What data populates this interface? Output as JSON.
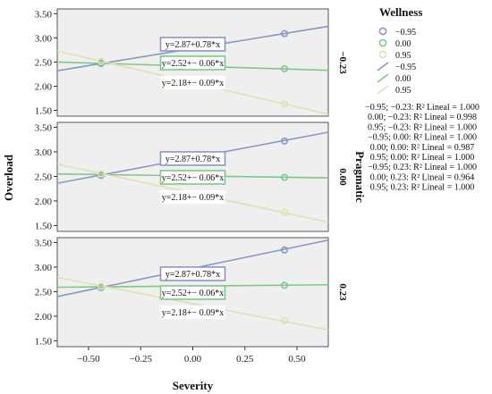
{
  "chart_data": {
    "type": "scatter",
    "xlabel": "Severity",
    "ylabel": "Overload",
    "facet_label": "Pragmatic",
    "legend_title": "Wellness",
    "xlim": [
      -0.65,
      0.65
    ],
    "ylim": [
      1.38,
      3.6
    ],
    "xticks": [
      "-0.50",
      "-0.25",
      "0.00",
      "0.25",
      "0.50"
    ],
    "yticks": [
      "1.50",
      "2.00",
      "2.50",
      "3.00",
      "3.50"
    ],
    "grid": false,
    "legend_position": "right",
    "fit_equations": [
      "y=2.87+0.78*x",
      "y=2.52+− 0.06*x",
      "y=2.18+− 0.09*x"
    ],
    "series": [
      {
        "name": "−0.95",
        "color": "#8a96c8",
        "fit": {
          "intercept": 2.87,
          "slope": 0.78
        }
      },
      {
        "name": "0.00",
        "color": "#7cc98a",
        "fit": {
          "intercept": 2.52,
          "slope": -0.06
        }
      },
      {
        "name": "0.95",
        "color": "#e3dfb0",
        "fit": {
          "intercept": 2.18,
          "slope": -0.09
        }
      }
    ],
    "panels": [
      {
        "label": "−0.23",
        "points": [
          {
            "series": 0,
            "x": -0.44,
            "y": 2.47
          },
          {
            "series": 0,
            "x": 0.44,
            "y": 3.09
          },
          {
            "series": 1,
            "x": -0.44,
            "y": 2.49
          },
          {
            "series": 1,
            "x": 0.44,
            "y": 2.36
          },
          {
            "series": 2,
            "x": -0.44,
            "y": 2.51
          },
          {
            "series": 2,
            "x": 0.44,
            "y": 1.63
          }
        ],
        "lines": [
          {
            "series": 0,
            "y_at_xmin": 2.32,
            "y_at_xmax": 3.24
          },
          {
            "series": 1,
            "y_at_xmin": 2.5,
            "y_at_xmax": 2.33
          },
          {
            "series": 2,
            "y_at_xmin": 2.73,
            "y_at_xmax": 1.42
          }
        ]
      },
      {
        "label": "0.00",
        "points": [
          {
            "series": 0,
            "x": -0.44,
            "y": 2.52
          },
          {
            "series": 0,
            "x": 0.44,
            "y": 3.22
          },
          {
            "series": 1,
            "x": -0.44,
            "y": 2.54
          },
          {
            "series": 1,
            "x": 0.44,
            "y": 2.48
          },
          {
            "series": 2,
            "x": -0.44,
            "y": 2.55
          },
          {
            "series": 2,
            "x": 0.44,
            "y": 1.77
          }
        ],
        "lines": [
          {
            "series": 0,
            "y_at_xmin": 2.36,
            "y_at_xmax": 3.4
          },
          {
            "series": 1,
            "y_at_xmin": 2.55,
            "y_at_xmax": 2.47
          },
          {
            "series": 2,
            "y_at_xmin": 2.75,
            "y_at_xmax": 1.57
          }
        ]
      },
      {
        "label": "0.23",
        "points": [
          {
            "series": 0,
            "x": -0.44,
            "y": 2.58
          },
          {
            "series": 0,
            "x": 0.44,
            "y": 3.35
          },
          {
            "series": 1,
            "x": -0.44,
            "y": 2.59
          },
          {
            "series": 1,
            "x": 0.44,
            "y": 2.63
          },
          {
            "series": 2,
            "x": -0.44,
            "y": 2.61
          },
          {
            "series": 2,
            "x": 0.44,
            "y": 1.91
          }
        ],
        "lines": [
          {
            "series": 0,
            "y_at_xmin": 2.4,
            "y_at_xmax": 3.55
          },
          {
            "series": 1,
            "y_at_xmin": 2.59,
            "y_at_xmax": 2.64
          },
          {
            "series": 2,
            "y_at_xmin": 2.79,
            "y_at_xmax": 1.72
          }
        ]
      }
    ],
    "r2_table": [
      "−0.95; −0.23: R² Lineal = 1.000",
      "0.00; −0.23: R² Lineal = 0.998",
      "0.95; −0.23: R² Lineal = 1.000",
      "−0.95;  0.00: R² Lineal = 1.000",
      "0.00;  0.00: R² Lineal = 0.987",
      "0.95;  0.00: R² Lineal = 1.000",
      "−0.95;  0.23: R² Lineal = 1.000",
      "0.00;  0.23: R² Lineal = 0.964",
      "0.95;  0.23: R² Lineal = 1.000"
    ]
  }
}
